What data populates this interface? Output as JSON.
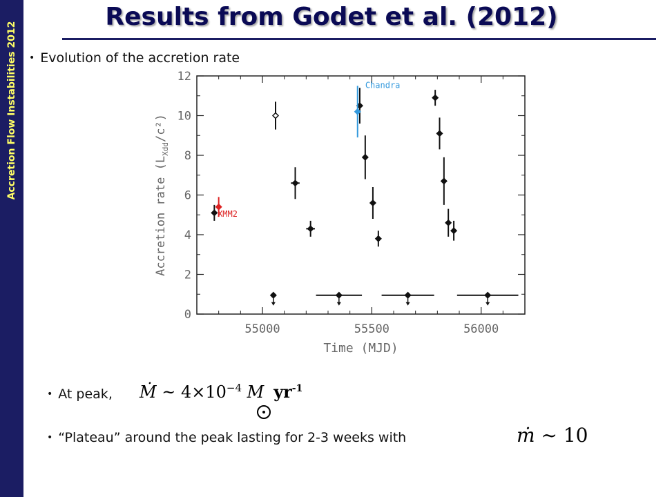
{
  "sidebar": {
    "text": "Accretion Flow Instabilities 2012",
    "color": "#1b1d63",
    "text_color": "#ffff66"
  },
  "slide": {
    "title": "Results from Godet et al. (2012)",
    "bullet1": "Evolution of the accretion rate",
    "bullet2": "At peak,",
    "formula1": {
      "mdot": "Ṁ",
      "approx": " ~ 4×10",
      "exp": "−4",
      "msun": " M",
      "unit": "yr",
      "unit_exp": "-1"
    },
    "bullet3": "“Plateau” around the peak lasting for 2-3 weeks with",
    "formula2": {
      "mdot": "ṁ",
      "rest": " ~ 10"
    }
  },
  "chart_data": {
    "type": "scatter",
    "xlabel": "Time (MJD)",
    "ylabel": "Accretion rate (L",
    "ylabel_sub": "Xdd",
    "ylabel_tail": "/c²)",
    "xlim": [
      54700,
      56200
    ],
    "ylim": [
      0,
      12
    ],
    "xticks": [
      55000,
      55500,
      56000
    ],
    "yticks": [
      0,
      2,
      4,
      6,
      8,
      10,
      12
    ],
    "annotations": [
      {
        "text": "Chandra",
        "x": 55470,
        "y": 11.4,
        "color": "#3399dd"
      },
      {
        "text": "XMM2",
        "x": 54795,
        "y": 4.9,
        "color": "#dd2222"
      }
    ],
    "series": [
      {
        "color": "#111111",
        "points": [
          {
            "x": 54780,
            "y": 5.1,
            "yerr": 0.4,
            "xerr": 0,
            "marker": "diamond"
          },
          {
            "x": 55060,
            "y": 10.0,
            "yerr": 0.7,
            "xerr": 0,
            "marker": "open-diamond"
          },
          {
            "x": 55150,
            "y": 6.6,
            "yerr": 0.8,
            "xerr": 20,
            "marker": "diamond"
          },
          {
            "x": 55220,
            "y": 4.3,
            "yerr": 0.4,
            "xerr": 20,
            "marker": "diamond"
          },
          {
            "x": 55445,
            "y": 10.5,
            "yerr": 0.9,
            "xerr": 0,
            "marker": "diamond"
          },
          {
            "x": 55470,
            "y": 7.9,
            "yerr": 1.1,
            "xerr": 0,
            "marker": "diamond"
          },
          {
            "x": 55505,
            "y": 5.6,
            "yerr": 0.8,
            "xerr": 0,
            "marker": "diamond"
          },
          {
            "x": 55530,
            "y": 3.8,
            "yerr": 0.4,
            "xerr": 0,
            "marker": "diamond"
          },
          {
            "x": 55790,
            "y": 10.9,
            "yerr": 0.4,
            "xerr": 0,
            "marker": "diamond"
          },
          {
            "x": 55810,
            "y": 9.1,
            "yerr": 0.8,
            "xerr": 0,
            "marker": "diamond"
          },
          {
            "x": 55830,
            "y": 6.7,
            "yerr": 1.2,
            "xerr": 0,
            "marker": "diamond"
          },
          {
            "x": 55850,
            "y": 4.6,
            "yerr": 0.7,
            "xerr": 0,
            "marker": "diamond"
          },
          {
            "x": 55875,
            "y": 4.2,
            "yerr": 0.5,
            "xerr": 0,
            "marker": "diamond"
          }
        ]
      },
      {
        "name": "XMM2",
        "color": "#dd2222",
        "points": [
          {
            "x": 54800,
            "y": 5.4,
            "yerr": 0.5,
            "xerr": 0,
            "marker": "diamond"
          }
        ]
      },
      {
        "name": "Chandra",
        "color": "#3399dd",
        "points": [
          {
            "x": 55435,
            "y": 10.2,
            "yerr": 1.3,
            "xerr": 0,
            "marker": "diamond"
          }
        ]
      }
    ],
    "upper_limits": [
      {
        "x": 55050,
        "y": 0.95,
        "xerr": 0
      },
      {
        "x": 55350,
        "y": 0.95,
        "xerr": 105
      },
      {
        "x": 55665,
        "y": 0.95,
        "xerr": 120
      },
      {
        "x": 56030,
        "y": 0.95,
        "xerr": 140
      }
    ]
  }
}
